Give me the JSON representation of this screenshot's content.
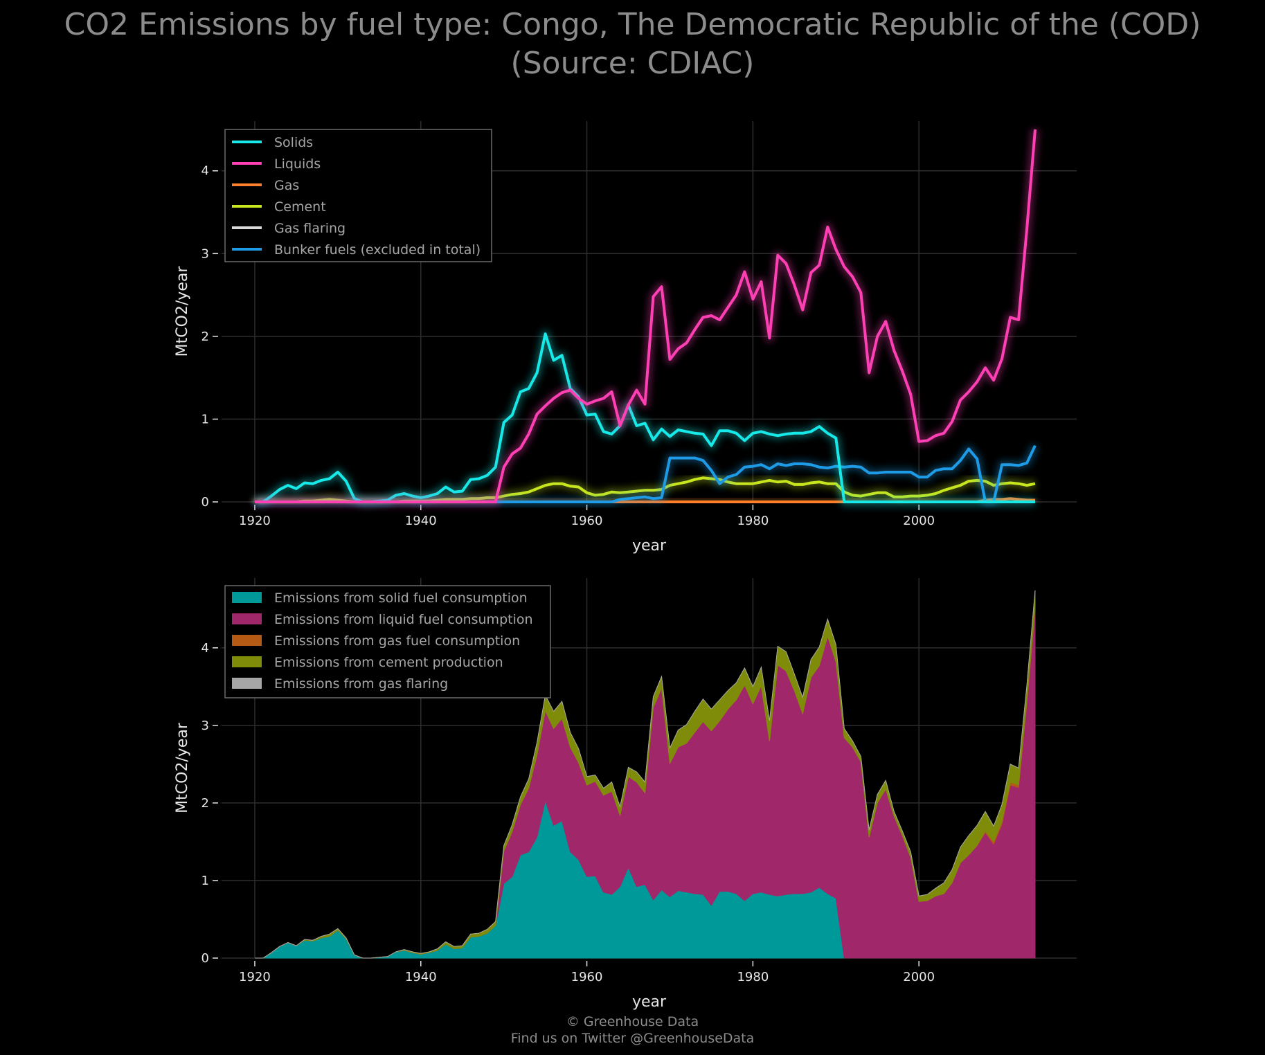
{
  "title": {
    "line1": "CO2 Emissions by fuel type: Congo, The Democratic Republic of the (COD)",
    "line2": "(Source: CDIAC)"
  },
  "footer": {
    "line1": "© Greenhouse Data",
    "line2": "Find us on Twitter @GreenhouseData"
  },
  "chart_data": [
    {
      "type": "line",
      "xlabel": "year",
      "ylabel": "MtCO2/year",
      "xlim": [
        1916,
        2019
      ],
      "ylim": [
        0,
        4.6
      ],
      "xticks": [
        1920,
        1940,
        1960,
        1980,
        2000
      ],
      "yticks": [
        0,
        1,
        2,
        3,
        4
      ],
      "grid": true,
      "legend": "top-left",
      "x": [
        1920,
        1921,
        1922,
        1923,
        1924,
        1925,
        1926,
        1927,
        1928,
        1929,
        1930,
        1931,
        1932,
        1933,
        1934,
        1935,
        1936,
        1937,
        1938,
        1939,
        1940,
        1941,
        1942,
        1943,
        1944,
        1945,
        1946,
        1947,
        1948,
        1949,
        1950,
        1951,
        1952,
        1953,
        1954,
        1955,
        1956,
        1957,
        1958,
        1959,
        1960,
        1961,
        1962,
        1963,
        1964,
        1965,
        1966,
        1967,
        1968,
        1969,
        1970,
        1971,
        1972,
        1973,
        1974,
        1975,
        1976,
        1977,
        1978,
        1979,
        1980,
        1981,
        1982,
        1983,
        1984,
        1985,
        1986,
        1987,
        1988,
        1989,
        1990,
        1991,
        1992,
        1993,
        1994,
        1995,
        1996,
        1997,
        1998,
        1999,
        2000,
        2001,
        2002,
        2003,
        2004,
        2005,
        2006,
        2007,
        2008,
        2009,
        2010,
        2011,
        2012,
        2013,
        2014
      ],
      "series": [
        {
          "name": "Solids",
          "color": "#17e8e8",
          "values": [
            0,
            0,
            0.07,
            0.15,
            0.2,
            0.16,
            0.23,
            0.22,
            0.26,
            0.28,
            0.36,
            0.25,
            0.04,
            0,
            0,
            0.01,
            0.02,
            0.08,
            0.1,
            0.07,
            0.05,
            0.07,
            0.1,
            0.18,
            0.12,
            0.13,
            0.27,
            0.28,
            0.32,
            0.42,
            0.96,
            1.05,
            1.33,
            1.37,
            1.56,
            2.03,
            1.71,
            1.77,
            1.37,
            1.27,
            1.05,
            1.06,
            0.85,
            0.82,
            0.92,
            1.17,
            0.92,
            0.95,
            0.75,
            0.88,
            0.79,
            0.87,
            0.85,
            0.83,
            0.82,
            0.68,
            0.86,
            0.86,
            0.83,
            0.74,
            0.83,
            0.85,
            0.82,
            0.8,
            0.82,
            0.83,
            0.83,
            0.85,
            0.91,
            0.83,
            0.77,
            0,
            0,
            0,
            0,
            0,
            0,
            0,
            0,
            0,
            0,
            0,
            0,
            0,
            0,
            0,
            0,
            0,
            0,
            0,
            0,
            0,
            0,
            0,
            0
          ]
        },
        {
          "name": "Liquids",
          "color": "#ff40b4",
          "values": [
            0,
            0,
            0,
            0,
            0,
            0,
            0,
            0,
            0,
            0,
            0,
            0,
            0,
            0,
            0,
            0,
            0,
            0,
            0,
            0,
            0,
            0,
            0,
            0,
            0,
            0,
            0,
            0,
            0,
            0,
            0.42,
            0.58,
            0.65,
            0.82,
            1.06,
            1.16,
            1.25,
            1.32,
            1.35,
            1.25,
            1.18,
            1.22,
            1.25,
            1.33,
            0.92,
            1.17,
            1.35,
            1.18,
            2.48,
            2.6,
            1.72,
            1.85,
            1.92,
            2.08,
            2.23,
            2.25,
            2.2,
            2.35,
            2.5,
            2.78,
            2.45,
            2.66,
            1.98,
            2.98,
            2.88,
            2.62,
            2.32,
            2.77,
            2.86,
            3.32,
            3.05,
            2.84,
            2.72,
            2.53,
            1.56,
            2.0,
            2.18,
            1.83,
            1.58,
            1.3,
            0.73,
            0.74,
            0.8,
            0.83,
            0.97,
            1.23,
            1.33,
            1.45,
            1.62,
            1.47,
            1.73,
            2.23,
            2.2,
            3.3,
            4.5
          ]
        },
        {
          "name": "Gas",
          "color": "#ff7f2a",
          "values": [
            0,
            0,
            0,
            0,
            0,
            0,
            0,
            0,
            0,
            0,
            0,
            0,
            0,
            0,
            0,
            0,
            0,
            0,
            0,
            0,
            0,
            0,
            0,
            0,
            0,
            0,
            0,
            0,
            0,
            0,
            0,
            0,
            0,
            0,
            0,
            0,
            0,
            0,
            0,
            0,
            0,
            0,
            0,
            0,
            0,
            0,
            0,
            0,
            0,
            0,
            0,
            0,
            0,
            0,
            0,
            0,
            0,
            0,
            0,
            0,
            0,
            0,
            0,
            0,
            0,
            0,
            0,
            0,
            0,
            0,
            0,
            0,
            0,
            0,
            0,
            0,
            0,
            0,
            0,
            0,
            0,
            0,
            0,
            0,
            0,
            0,
            0,
            0,
            0.02,
            0.03,
            0.03,
            0.04,
            0.03,
            0.02,
            0.02
          ]
        },
        {
          "name": "Cement",
          "color": "#c8e61e",
          "values": [
            0,
            0,
            0,
            0,
            0,
            0,
            0.01,
            0.01,
            0.02,
            0.03,
            0.02,
            0.01,
            0,
            0,
            0,
            0,
            0,
            0,
            0.01,
            0.01,
            0.01,
            0.01,
            0.02,
            0.03,
            0.03,
            0.03,
            0.04,
            0.04,
            0.05,
            0.05,
            0.07,
            0.09,
            0.1,
            0.12,
            0.16,
            0.2,
            0.22,
            0.22,
            0.19,
            0.18,
            0.11,
            0.08,
            0.09,
            0.12,
            0.11,
            0.12,
            0.13,
            0.14,
            0.14,
            0.15,
            0.2,
            0.22,
            0.24,
            0.27,
            0.29,
            0.28,
            0.27,
            0.24,
            0.22,
            0.22,
            0.22,
            0.24,
            0.26,
            0.24,
            0.25,
            0.21,
            0.21,
            0.23,
            0.24,
            0.22,
            0.22,
            0.12,
            0.08,
            0.07,
            0.09,
            0.11,
            0.11,
            0.06,
            0.06,
            0.07,
            0.07,
            0.08,
            0.1,
            0.14,
            0.17,
            0.2,
            0.25,
            0.26,
            0.25,
            0.2,
            0.22,
            0.23,
            0.22,
            0.2,
            0.22
          ]
        },
        {
          "name": "Gas flaring",
          "color": "#d9d9d9",
          "values": [
            0,
            0,
            0,
            0,
            0,
            0,
            0,
            0,
            0,
            0,
            0,
            0,
            0,
            0,
            0,
            0,
            0,
            0,
            0,
            0,
            0,
            0,
            0,
            0,
            0,
            0,
            0,
            0,
            0,
            0,
            0,
            0,
            0,
            0,
            0,
            0,
            0,
            0,
            0,
            0,
            0,
            0,
            0,
            0,
            0,
            0,
            0,
            0,
            0,
            0,
            0,
            0,
            0,
            0,
            0,
            0,
            0,
            0,
            0,
            0,
            0,
            0,
            0,
            0,
            0,
            0,
            0,
            0,
            0,
            0,
            0,
            0,
            0,
            0,
            0,
            0,
            0,
            0,
            0,
            0,
            0,
            0,
            0,
            0,
            0,
            0,
            0,
            0,
            0,
            0,
            0,
            0,
            0,
            0,
            0
          ]
        },
        {
          "name": "Bunker fuels (excluded in total)",
          "color": "#1e9be6",
          "values": [
            0,
            0,
            0,
            0,
            0,
            0,
            0,
            0,
            0,
            0,
            0,
            0,
            0,
            0,
            0,
            0,
            0,
            0,
            0,
            0,
            0,
            0,
            0,
            0,
            0,
            0,
            0,
            0,
            0,
            0,
            0,
            0,
            0,
            0,
            0,
            0,
            0,
            0,
            0,
            0,
            0,
            0,
            0,
            0,
            0.03,
            0.04,
            0.05,
            0.06,
            0.04,
            0.05,
            0.53,
            0.53,
            0.53,
            0.53,
            0.5,
            0.38,
            0.22,
            0.3,
            0.33,
            0.42,
            0.43,
            0.45,
            0.4,
            0.46,
            0.44,
            0.46,
            0.46,
            0.45,
            0.42,
            0.41,
            0.43,
            0.42,
            0.43,
            0.42,
            0.35,
            0.35,
            0.36,
            0.36,
            0.36,
            0.36,
            0.3,
            0.3,
            0.38,
            0.4,
            0.4,
            0.5,
            0.64,
            0.52,
            0,
            0,
            0.45,
            0.45,
            0.44,
            0.47,
            0.68
          ]
        }
      ]
    },
    {
      "type": "area",
      "stacked": true,
      "xlabel": "year",
      "ylabel": "MtCO2/year",
      "xlim": [
        1916,
        2019
      ],
      "ylim": [
        0,
        4.9
      ],
      "xticks": [
        1920,
        1940,
        1960,
        1980,
        2000
      ],
      "yticks": [
        0,
        1,
        2,
        3,
        4
      ],
      "grid": true,
      "legend": "top-left",
      "series": [
        {
          "name": "Emissions from solid fuel consumption",
          "source": "Solids",
          "color": "#009999"
        },
        {
          "name": "Emissions from liquid fuel consumption",
          "source": "Liquids",
          "color": "#a0286a"
        },
        {
          "name": "Emissions from gas fuel consumption",
          "source": "Gas",
          "color": "#b45a14"
        },
        {
          "name": "Emissions from cement production",
          "source": "Cement",
          "color": "#7f8c0a"
        },
        {
          "name": "Emissions from gas flaring",
          "source": "Gas flaring",
          "color": "#a6a6a6"
        }
      ]
    }
  ]
}
